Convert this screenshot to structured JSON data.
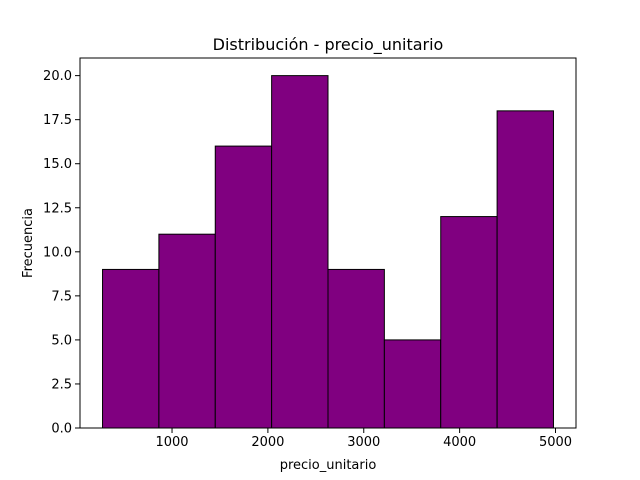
{
  "chart_data": {
    "type": "bar",
    "title": "Distribución - precio_unitario",
    "xlabel": "precio_unitario",
    "ylabel": "Frecuencia",
    "bin_edges": [
      275,
      863,
      1451,
      2039,
      2627,
      3215,
      3803,
      4391,
      4979
    ],
    "values": [
      9,
      11,
      16,
      20,
      9,
      5,
      12,
      18
    ],
    "xlim": [
      40,
      5214
    ],
    "ylim": [
      0,
      21
    ],
    "xticks": [
      1000,
      2000,
      3000,
      4000,
      5000
    ],
    "xtick_labels": [
      "1000",
      "2000",
      "3000",
      "4000",
      "5000"
    ],
    "yticks": [
      0,
      2.5,
      5,
      7.5,
      10,
      12.5,
      15,
      17.5,
      20
    ],
    "ytick_labels": [
      "0.0",
      "2.5",
      "5.0",
      "7.5",
      "10.0",
      "12.5",
      "15.0",
      "17.5",
      "20.0"
    ],
    "bar_color": "#800080",
    "edge_color": "#000000",
    "grid": false,
    "legend": "none"
  }
}
